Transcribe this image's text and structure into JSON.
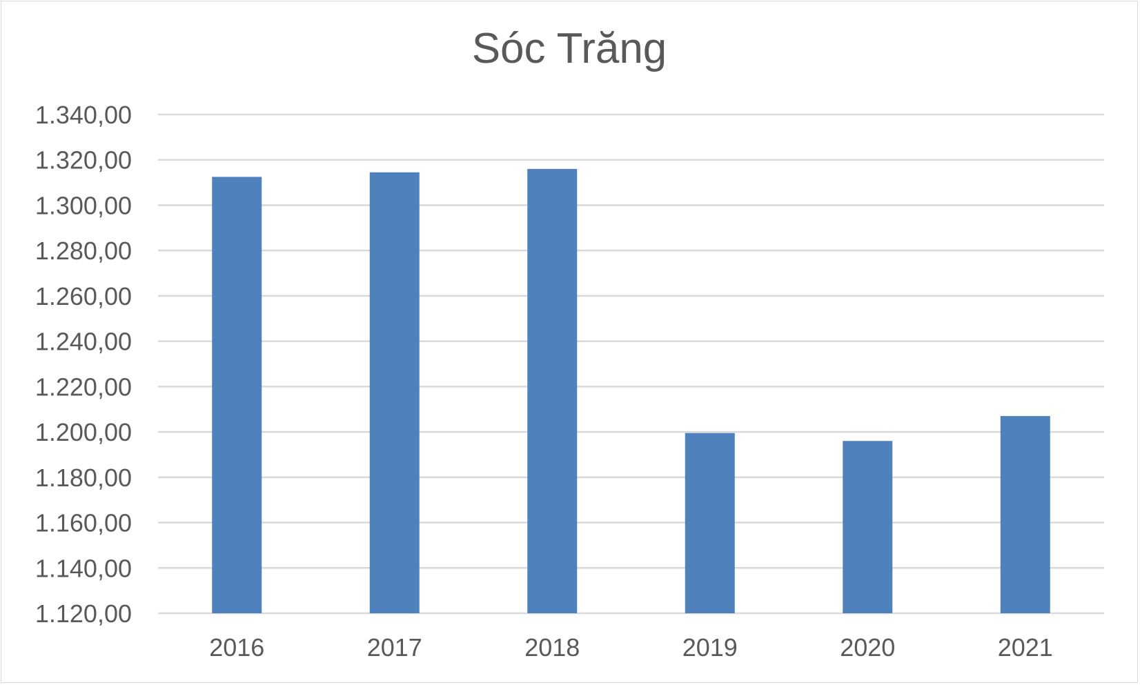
{
  "chart_data": {
    "type": "bar",
    "title": "Sóc Trăng",
    "categories": [
      "2016",
      "2017",
      "2018",
      "2019",
      "2020",
      "2021"
    ],
    "values": [
      1312.5,
      1314.5,
      1316.0,
      1199.5,
      1196.0,
      1207.0
    ],
    "y_ticks": [
      "1.120,00",
      "1.140,00",
      "1.160,00",
      "1.180,00",
      "1.200,00",
      "1.220,00",
      "1.240,00",
      "1.260,00",
      "1.280,00",
      "1.300,00",
      "1.320,00",
      "1.340,00"
    ],
    "ylim": [
      1120,
      1340
    ],
    "ytick_step": 20,
    "grid": true,
    "legend": "none",
    "bar_color": "#4f81bd",
    "grid_color": "#d9d9d9"
  }
}
